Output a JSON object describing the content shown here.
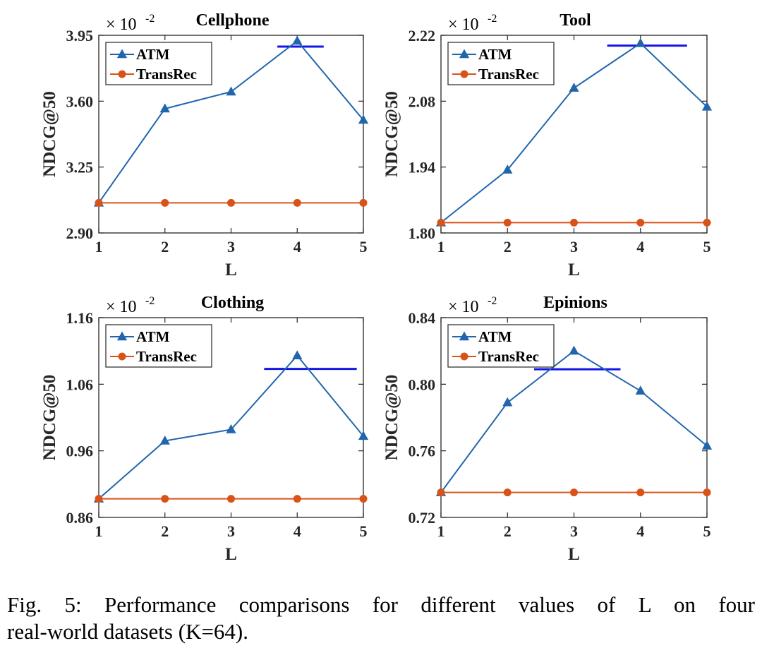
{
  "colors": {
    "atm": "#2166ac",
    "transrec": "#d95319",
    "reference": "#1515e6",
    "axis": "#262626"
  },
  "caption": {
    "line1": "Fig. 5: Performance comparisons for different values of L on four",
    "line2": "real-world datasets (K=64)."
  },
  "chart_data": [
    {
      "type": "line",
      "title": "Cellphone",
      "xlabel": "L",
      "ylabel": "NDCG@50",
      "scale_label": "× 10",
      "scale_exponent": "-2",
      "x": [
        1,
        2,
        3,
        4,
        5
      ],
      "ylim": [
        2.9,
        3.95
      ],
      "yticks": [
        2.9,
        3.25,
        3.6,
        3.95
      ],
      "ytick_labels": [
        "2.90",
        "3.25",
        "3.60",
        "3.95"
      ],
      "series": [
        {
          "name": "ATM",
          "marker": "triangle",
          "values": [
            3.06,
            3.56,
            3.65,
            3.92,
            3.5
          ]
        },
        {
          "name": "TransRec",
          "marker": "circle",
          "values": [
            3.06,
            3.06,
            3.06,
            3.06,
            3.06
          ]
        }
      ],
      "reference_line": {
        "x_from": 3.7,
        "x_to": 4.4,
        "y": 3.89
      },
      "legend": "top-left"
    },
    {
      "type": "line",
      "title": "Tool",
      "xlabel": "L",
      "ylabel": "NDCG@50",
      "scale_label": "× 10",
      "scale_exponent": "-2",
      "x": [
        1,
        2,
        3,
        4,
        5
      ],
      "ylim": [
        1.8,
        2.22
      ],
      "yticks": [
        1.8,
        1.94,
        2.08,
        2.22
      ],
      "ytick_labels": [
        "1.80",
        "1.94",
        "2.08",
        "2.22"
      ],
      "series": [
        {
          "name": "ATM",
          "marker": "triangle",
          "values": [
            1.822,
            1.934,
            2.108,
            2.203,
            2.068
          ]
        },
        {
          "name": "TransRec",
          "marker": "circle",
          "values": [
            1.822,
            1.822,
            1.822,
            1.822,
            1.822
          ]
        }
      ],
      "reference_line": {
        "x_from": 3.5,
        "x_to": 4.7,
        "y": 2.198
      },
      "legend": "top-left"
    },
    {
      "type": "line",
      "title": "Clothing",
      "xlabel": "L",
      "ylabel": "NDCG@50",
      "scale_label": "× 10",
      "scale_exponent": "-2",
      "x": [
        1,
        2,
        3,
        4,
        5
      ],
      "ylim": [
        0.86,
        1.16
      ],
      "yticks": [
        0.86,
        0.96,
        1.06,
        1.16
      ],
      "ytick_labels": [
        "0.86",
        "0.96",
        "1.06",
        "1.16"
      ],
      "series": [
        {
          "name": "ATM",
          "marker": "triangle",
          "values": [
            0.888,
            0.975,
            0.992,
            1.103,
            0.982
          ]
        },
        {
          "name": "TransRec",
          "marker": "circle",
          "values": [
            0.888,
            0.888,
            0.888,
            0.888,
            0.888
          ]
        }
      ],
      "reference_line": {
        "x_from": 3.5,
        "x_to": 4.9,
        "y": 1.083
      },
      "legend": "top-left"
    },
    {
      "type": "line",
      "title": "Epinions",
      "xlabel": "L",
      "ylabel": "NDCG@50",
      "scale_label": "× 10",
      "scale_exponent": "-2",
      "x": [
        1,
        2,
        3,
        4,
        5
      ],
      "ylim": [
        0.72,
        0.84
      ],
      "yticks": [
        0.72,
        0.76,
        0.8,
        0.84
      ],
      "ytick_labels": [
        "0.72",
        "0.76",
        "0.80",
        "0.84"
      ],
      "series": [
        {
          "name": "ATM",
          "marker": "triangle",
          "values": [
            0.735,
            0.789,
            0.82,
            0.796,
            0.763
          ]
        },
        {
          "name": "TransRec",
          "marker": "circle",
          "values": [
            0.735,
            0.735,
            0.735,
            0.735,
            0.735
          ]
        }
      ],
      "reference_line": {
        "x_from": 2.4,
        "x_to": 3.7,
        "y": 0.809
      },
      "legend": "top-left"
    }
  ]
}
